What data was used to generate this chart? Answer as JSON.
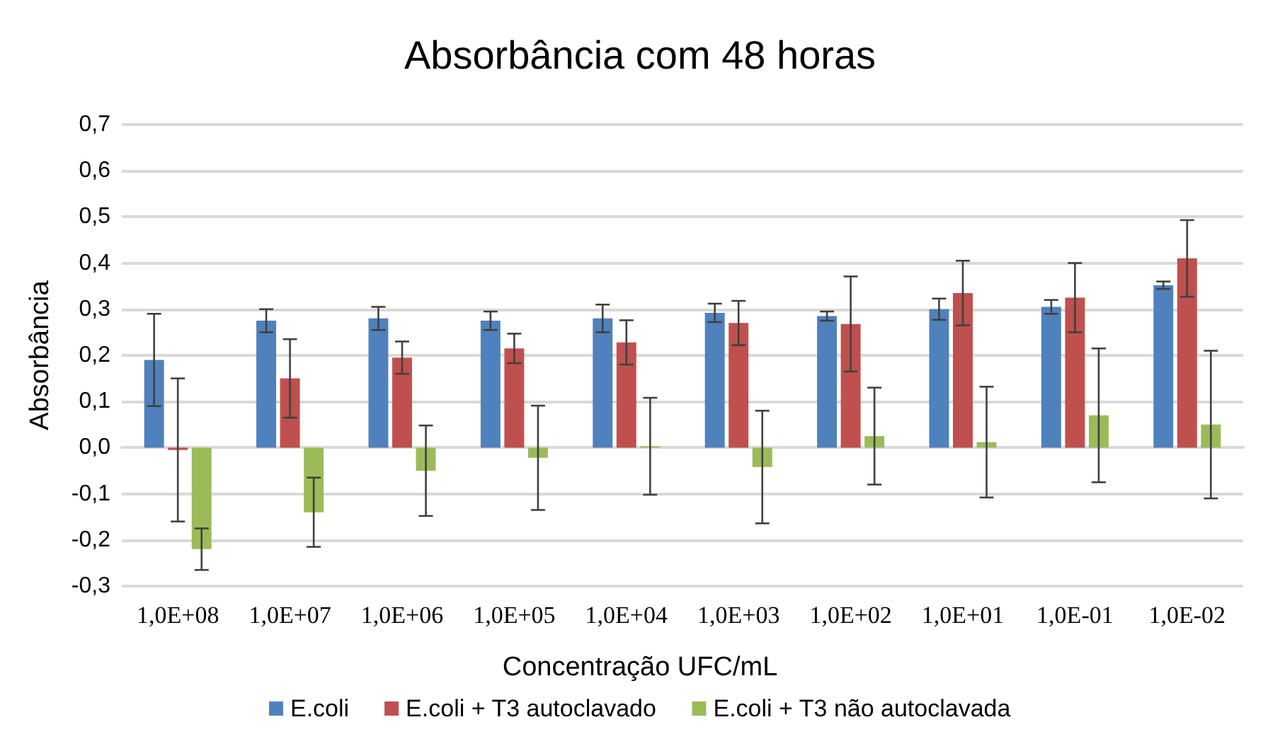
{
  "chart_data": {
    "type": "bar",
    "title": "Absorbância com 48 horas",
    "xlabel": "Concentração UFC/mL",
    "ylabel": "Absorbância",
    "categories": [
      "1,0E+08",
      "1,0E+07",
      "1,0E+06",
      "1,0E+05",
      "1,0E+04",
      "1,0E+03",
      "1,0E+02",
      "1,0E+01",
      "1,0E-01",
      "1,0E-02"
    ],
    "series": [
      {
        "name": "E.coli",
        "color": "#4f81bd",
        "values": [
          0.19,
          0.275,
          0.28,
          0.275,
          0.28,
          0.292,
          0.285,
          0.3,
          0.305,
          0.352
        ],
        "errors": [
          0.1,
          0.025,
          0.025,
          0.02,
          0.03,
          0.02,
          0.01,
          0.023,
          0.015,
          0.008
        ]
      },
      {
        "name": "E.coli + T3 autoclavado",
        "color": "#c0504d",
        "values": [
          -0.005,
          0.15,
          0.195,
          0.215,
          0.228,
          0.27,
          0.268,
          0.335,
          0.325,
          0.41
        ],
        "errors": [
          0.155,
          0.085,
          0.035,
          0.032,
          0.048,
          0.048,
          0.103,
          0.07,
          0.075,
          0.083
        ]
      },
      {
        "name": "E.coli + T3 não autoclavada",
        "color": "#9bbb59",
        "values": [
          -0.22,
          -0.14,
          -0.05,
          -0.022,
          0.003,
          -0.042,
          0.025,
          0.012,
          0.07,
          0.05
        ],
        "errors": [
          0.045,
          0.075,
          0.098,
          0.113,
          0.105,
          0.122,
          0.105,
          0.12,
          0.145,
          0.16
        ]
      }
    ],
    "ylim": [
      -0.3,
      0.7
    ],
    "yticks": [
      {
        "value": -0.3,
        "label": "-0,3"
      },
      {
        "value": -0.2,
        "label": "-0,2"
      },
      {
        "value": -0.1,
        "label": "-0,1"
      },
      {
        "value": 0,
        "label": "0,0"
      },
      {
        "value": 0.1,
        "label": "0,1"
      },
      {
        "value": 0.2,
        "label": "0,2"
      },
      {
        "value": 0.3,
        "label": "0,3"
      },
      {
        "value": 0.4,
        "label": "0,4"
      },
      {
        "value": 0.5,
        "label": "0,5"
      },
      {
        "value": 0.6,
        "label": "0,6"
      },
      {
        "value": 0.7,
        "label": "0,7"
      }
    ],
    "grid": "y",
    "legend": "bottom"
  }
}
